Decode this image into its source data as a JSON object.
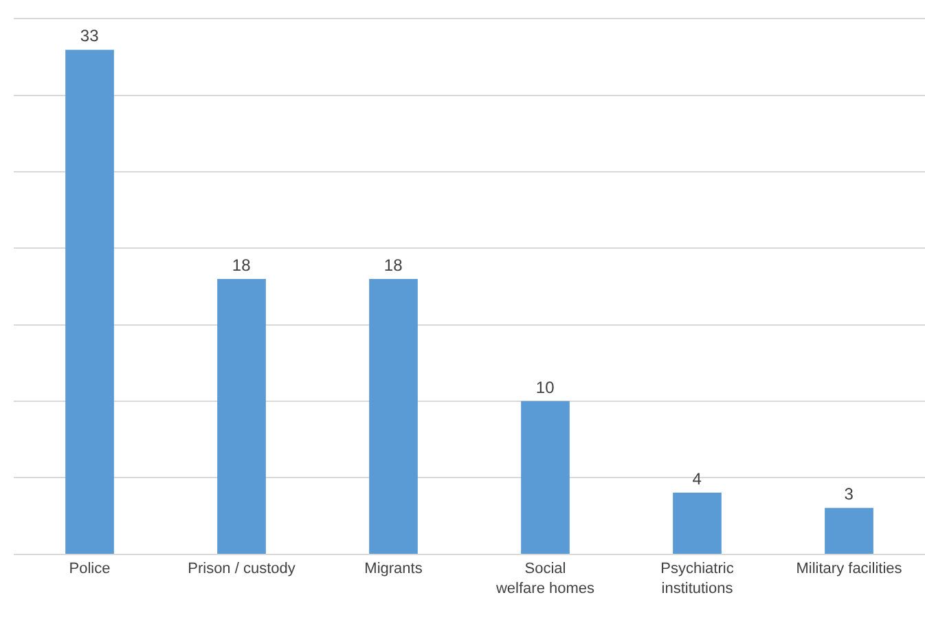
{
  "chart_data": {
    "type": "bar",
    "categories": [
      "Police",
      "Prison / custody",
      "Migrants",
      "Social welfare homes",
      "Psychiatric institutions",
      "Military facilities"
    ],
    "values": [
      33,
      18,
      18,
      10,
      4,
      3
    ],
    "color": "#5b9bd5",
    "ylim": [
      0,
      35
    ],
    "yticks": [
      {
        "value": 0,
        "label": null
      },
      {
        "value": 5,
        "label": null
      },
      {
        "value": 10,
        "label": null
      },
      {
        "value": 15,
        "label": null
      },
      {
        "value": 20,
        "label": null
      },
      {
        "value": 25,
        "label": null
      },
      {
        "value": 30,
        "label": null
      },
      {
        "value": 35,
        "label": null
      }
    ],
    "grid": "y",
    "tick_labels": "x",
    "data_labels": true
  }
}
